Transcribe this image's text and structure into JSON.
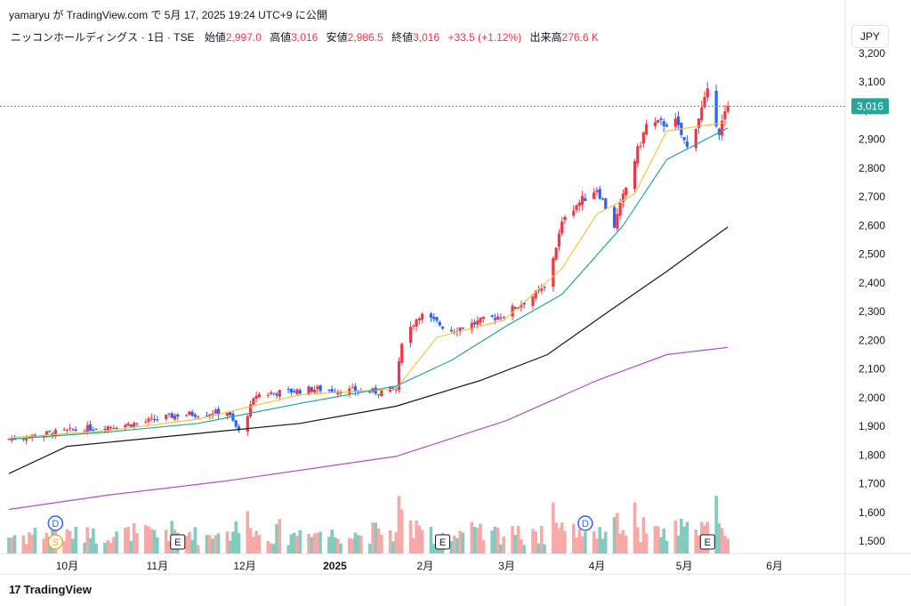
{
  "credit": "yamaryu が TradingView.com で 5月 17, 2025 19:24 UTC+9 に公開",
  "legend": {
    "symbol": "ニッコンホールディングス · 1日 · TSE",
    "open_label": "始値",
    "open": "2,997.0",
    "high_label": "高値",
    "high": "3,016",
    "low_label": "安値",
    "low": "2,986.5",
    "close_label": "終値",
    "close": "3,016",
    "change": "+33.5 (+1.12%)",
    "volume_label": "出来高",
    "volume": "276.6 K"
  },
  "currency": "JPY",
  "brand": "TradingView",
  "last_price_label": "3,016",
  "colors": {
    "up": "#f23645",
    "down": "#2962ff",
    "vol_up": "#f7a9a7",
    "vol_down": "#84cbbf",
    "ma_fast": "#f5c342",
    "ma_mid": "#26a69a",
    "ma_long": "#131722",
    "ma_longest": "#b44bc8",
    "price_line": "#26a69a"
  },
  "chart_data": {
    "type": "candlestick",
    "y_axis": {
      "min": 1460,
      "max": 3240,
      "ticks": [
        "3,200",
        "3,100",
        "3,000",
        "2,900",
        "2,800",
        "2,700",
        "2,600",
        "2,500",
        "2,400",
        "2,300",
        "2,200",
        "2,100",
        "2,000",
        "1,900",
        "1,800",
        "1,700",
        "1,600",
        "1,500"
      ]
    },
    "x_axis": {
      "labels": [
        "10月",
        "11月",
        "12月",
        "2025",
        "2月",
        "3月",
        "4月",
        "5月",
        "6月"
      ]
    },
    "events": [
      {
        "label": "D",
        "kind": "dividend",
        "date": "2024-09-27"
      },
      {
        "label": "S",
        "kind": "split",
        "date": "2024-09-27"
      },
      {
        "label": "E",
        "kind": "earnings",
        "date": "2024-11-08"
      },
      {
        "label": "E",
        "kind": "earnings",
        "date": "2025-02-07"
      },
      {
        "label": "D",
        "kind": "dividend",
        "date": "2025-03-28"
      },
      {
        "label": "E",
        "kind": "earnings",
        "date": "2025-05-09"
      }
    ],
    "anchors": [
      {
        "date": "2024-09-11",
        "close": 1855
      },
      {
        "date": "2024-09-25",
        "close": 1875
      },
      {
        "date": "2024-10-10",
        "close": 1895
      },
      {
        "date": "2024-10-25",
        "close": 1910
      },
      {
        "date": "2024-11-08",
        "close": 1940
      },
      {
        "date": "2024-11-25",
        "close": 1950
      },
      {
        "date": "2024-11-29",
        "close": 1880
      },
      {
        "date": "2024-12-05",
        "close": 2010
      },
      {
        "date": "2024-12-25",
        "close": 2030
      },
      {
        "date": "2025-01-15",
        "close": 2020
      },
      {
        "date": "2025-01-22",
        "close": 2030
      },
      {
        "date": "2025-01-24",
        "close": 2200
      },
      {
        "date": "2025-01-30",
        "close": 2290
      },
      {
        "date": "2025-02-10",
        "close": 2235
      },
      {
        "date": "2025-02-28",
        "close": 2290
      },
      {
        "date": "2025-03-14",
        "close": 2380
      },
      {
        "date": "2025-03-21",
        "close": 2640
      },
      {
        "date": "2025-04-01",
        "close": 2730
      },
      {
        "date": "2025-04-07",
        "close": 2600
      },
      {
        "date": "2025-04-14",
        "close": 2830
      },
      {
        "date": "2025-04-18",
        "close": 2950
      },
      {
        "date": "2025-04-28",
        "close": 2960
      },
      {
        "date": "2025-05-02",
        "close": 2870
      },
      {
        "date": "2025-05-09",
        "close": 3060
      },
      {
        "date": "2025-05-13",
        "close": 2930
      },
      {
        "date": "2025-05-16",
        "close": 3016
      }
    ],
    "moving_averages": [
      {
        "key": "ma_fast",
        "points": [
          [
            "2024-09-11",
            1860
          ],
          [
            "2024-10-15",
            1885
          ],
          [
            "2024-11-15",
            1925
          ],
          [
            "2024-12-20",
            2010
          ],
          [
            "2025-01-22",
            2030
          ],
          [
            "2025-02-05",
            2210
          ],
          [
            "2025-02-28",
            2270
          ],
          [
            "2025-03-20",
            2450
          ],
          [
            "2025-04-01",
            2640
          ],
          [
            "2025-04-14",
            2710
          ],
          [
            "2025-04-25",
            2930
          ],
          [
            "2025-05-16",
            2960
          ]
        ]
      },
      {
        "key": "ma_mid",
        "points": [
          [
            "2024-09-11",
            1855
          ],
          [
            "2024-10-15",
            1880
          ],
          [
            "2024-11-15",
            1910
          ],
          [
            "2024-12-20",
            1980
          ],
          [
            "2025-01-22",
            2040
          ],
          [
            "2025-02-10",
            2130
          ],
          [
            "2025-03-01",
            2250
          ],
          [
            "2025-03-20",
            2360
          ],
          [
            "2025-04-10",
            2600
          ],
          [
            "2025-04-25",
            2830
          ],
          [
            "2025-05-16",
            2940
          ]
        ]
      },
      {
        "key": "ma_long",
        "points": [
          [
            "2024-09-11",
            1735
          ],
          [
            "2024-10-01",
            1830
          ],
          [
            "2024-11-15",
            1875
          ],
          [
            "2024-12-20",
            1910
          ],
          [
            "2025-01-22",
            1970
          ],
          [
            "2025-02-20",
            2060
          ],
          [
            "2025-03-15",
            2150
          ],
          [
            "2025-04-05",
            2300
          ],
          [
            "2025-04-25",
            2440
          ],
          [
            "2025-05-16",
            2595
          ]
        ]
      },
      {
        "key": "ma_longest",
        "points": [
          [
            "2024-09-11",
            1610
          ],
          [
            "2024-10-15",
            1660
          ],
          [
            "2024-11-25",
            1710
          ],
          [
            "2025-01-22",
            1795
          ],
          [
            "2025-03-01",
            1920
          ],
          [
            "2025-04-01",
            2060
          ],
          [
            "2025-04-25",
            2150
          ],
          [
            "2025-05-16",
            2175
          ]
        ]
      }
    ],
    "volume_max_pct_note": ""
  }
}
